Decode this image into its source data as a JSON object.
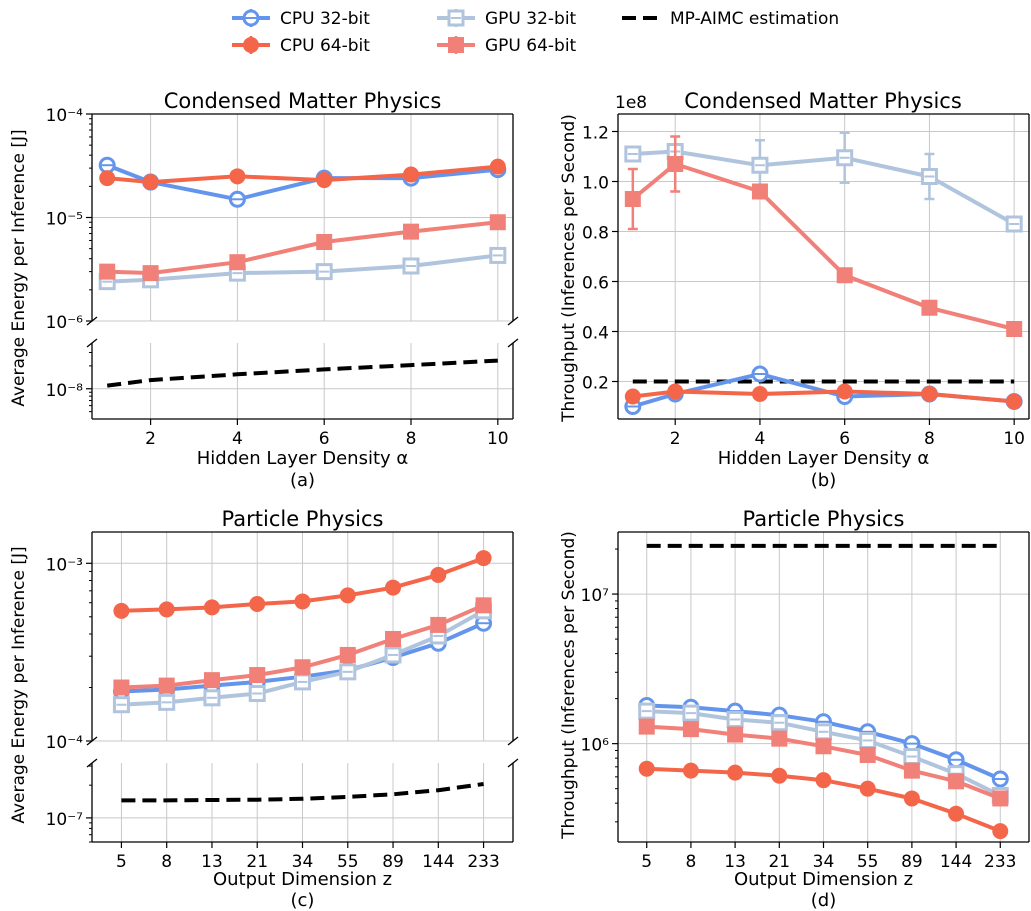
{
  "legend": {
    "entries": [
      {
        "key": "cpu32",
        "label": "CPU 32-bit"
      },
      {
        "key": "cpu64",
        "label": "CPU 64-bit"
      },
      {
        "key": "gpu32",
        "label": "GPU 32-bit"
      },
      {
        "key": "gpu64",
        "label": "GPU 64-bit"
      },
      {
        "key": "mp",
        "label": "MP-AIMC estimation"
      }
    ]
  },
  "styles": {
    "cpu32": {
      "color": "#6495ED",
      "marker": "open-circle"
    },
    "cpu64": {
      "color": "#F4664A",
      "marker": "filled-circle"
    },
    "gpu32": {
      "color": "#B0C4DE",
      "marker": "open-square"
    },
    "gpu64": {
      "color": "#F08078",
      "marker": "filled-square"
    },
    "mp": {
      "color": "#000000",
      "marker": "dashed-line"
    }
  },
  "chart_data": [
    {
      "panel": "(a)",
      "type": "line",
      "title": "Condensed Matter Physics",
      "xlabel": "Hidden Layer Density α",
      "ylabel": "Average Energy per Inference [J]",
      "yscale": "log",
      "broken_axis": true,
      "upper_ylim": [
        1e-06,
        0.0001
      ],
      "lower_ylim": [
        4e-09,
        4e-08
      ],
      "x": [
        1,
        2,
        4,
        6,
        8,
        10
      ],
      "xticks": [
        "2",
        "4",
        "6",
        "8",
        "10"
      ],
      "upper_yticks": [
        "10⁻⁶",
        "10⁻⁵",
        "10⁻⁴"
      ],
      "lower_yticks": [
        "10⁻⁸"
      ],
      "grid": true,
      "series": [
        {
          "key": "cpu32",
          "name": "CPU 32-bit",
          "values": [
            3.2e-05,
            2.2e-05,
            1.5e-05,
            2.4e-05,
            2.4e-05,
            2.9e-05
          ]
        },
        {
          "key": "cpu64",
          "name": "CPU 64-bit",
          "values": [
            2.4e-05,
            2.2e-05,
            2.5e-05,
            2.3e-05,
            2.6e-05,
            3.1e-05
          ]
        },
        {
          "key": "gpu32",
          "name": "GPU 32-bit",
          "values": [
            2.4e-06,
            2.5e-06,
            2.9e-06,
            3e-06,
            3.4e-06,
            4.3e-06
          ]
        },
        {
          "key": "gpu64",
          "name": "GPU 64-bit",
          "values": [
            3e-06,
            2.9e-06,
            3.7e-06,
            5.8e-06,
            7.3e-06,
            9e-06
          ]
        },
        {
          "key": "mp",
          "name": "MP-AIMC estimation",
          "values": [
            1.1e-08,
            1.3e-08,
            1.55e-08,
            1.8e-08,
            2.05e-08,
            2.35e-08
          ]
        }
      ]
    },
    {
      "panel": "(b)",
      "type": "line",
      "title": "Condensed Matter Physics",
      "xlabel": "Hidden Layer Density α",
      "ylabel": "Throughput (Inferences per Second)",
      "yscale": "linear",
      "scale_label": "1e8",
      "ylim": [
        0.05,
        1.27
      ],
      "x": [
        1,
        2,
        4,
        6,
        8,
        10
      ],
      "xticks": [
        "2",
        "4",
        "6",
        "8",
        "10"
      ],
      "yticks": [
        "0.2",
        "0.4",
        "0.6",
        "0.8",
        "1.0",
        "1.2"
      ],
      "grid": true,
      "series": [
        {
          "key": "cpu32",
          "name": "CPU 32-bit",
          "values": [
            0.1,
            0.15,
            0.23,
            0.14,
            0.15,
            0.12
          ]
        },
        {
          "key": "cpu64",
          "name": "CPU 64-bit",
          "values": [
            0.14,
            0.16,
            0.15,
            0.16,
            0.15,
            0.12
          ]
        },
        {
          "key": "gpu32",
          "name": "GPU 32-bit",
          "values": [
            1.11,
            1.12,
            1.065,
            1.095,
            1.02,
            0.83
          ],
          "errors": [
            0.02,
            0.02,
            0.1,
            0.1,
            0.09,
            0.02
          ]
        },
        {
          "key": "gpu64",
          "name": "GPU 64-bit",
          "values": [
            0.93,
            1.07,
            0.96,
            0.625,
            0.495,
            0.41
          ],
          "errors": [
            0.12,
            0.11,
            0.01,
            0.01,
            0.01,
            0.01
          ]
        },
        {
          "key": "mp",
          "name": "MP-AIMC estimation",
          "values": [
            0.2,
            0.2,
            0.2,
            0.2,
            0.2,
            0.2
          ]
        }
      ]
    },
    {
      "panel": "(c)",
      "type": "line",
      "title": "Particle Physics",
      "xlabel": "Output Dimension z",
      "ylabel": "Average Energy per Inference [J]",
      "yscale": "log",
      "broken_axis": true,
      "upper_ylim": [
        0.0001,
        0.0015
      ],
      "lower_ylim": [
        6e-08,
        3.2e-07
      ],
      "x": [
        5,
        8,
        13,
        21,
        34,
        55,
        89,
        144,
        233
      ],
      "xticks": [
        "5",
        "8",
        "13",
        "21",
        "34",
        "55",
        "89",
        "144",
        "233"
      ],
      "upper_yticks": [
        "10⁻⁴",
        "10⁻³"
      ],
      "lower_yticks": [
        "10⁻⁷"
      ],
      "grid": true,
      "series": [
        {
          "key": "cpu32",
          "name": "CPU 32-bit",
          "values": [
            0.00019,
            0.000195,
            0.000205,
            0.000215,
            0.00023,
            0.00025,
            0.000295,
            0.000355,
            0.00046
          ]
        },
        {
          "key": "cpu64",
          "name": "CPU 64-bit",
          "values": [
            0.00054,
            0.00055,
            0.000565,
            0.00059,
            0.00061,
            0.00066,
            0.00073,
            0.00086,
            0.00107
          ]
        },
        {
          "key": "gpu32",
          "name": "GPU 32-bit",
          "values": [
            0.00016,
            0.000165,
            0.000175,
            0.000185,
            0.000215,
            0.000245,
            0.000305,
            0.00039,
            0.00054
          ]
        },
        {
          "key": "gpu64",
          "name": "GPU 64-bit",
          "values": [
            0.0002,
            0.000205,
            0.00022,
            0.000235,
            0.00026,
            0.000305,
            0.000375,
            0.00045,
            0.00058
          ]
        },
        {
          "key": "mp",
          "name": "MP-AIMC estimation",
          "values": [
            1.45e-07,
            1.45e-07,
            1.46e-07,
            1.47e-07,
            1.5e-07,
            1.56e-07,
            1.65e-07,
            1.8e-07,
            2.05e-07
          ]
        }
      ]
    },
    {
      "panel": "(d)",
      "type": "line",
      "title": "Particle Physics",
      "xlabel": "Output Dimension z",
      "ylabel": "Throughput (Inferences per Second)",
      "yscale": "log",
      "ylim": [
        220000.0,
        26000000.0
      ],
      "x": [
        5,
        8,
        13,
        21,
        34,
        55,
        89,
        144,
        233
      ],
      "xticks": [
        "5",
        "8",
        "13",
        "21",
        "34",
        "55",
        "89",
        "144",
        "233"
      ],
      "yticks": [
        "10⁶",
        "10⁷"
      ],
      "grid": true,
      "series": [
        {
          "key": "cpu32",
          "name": "CPU 32-bit",
          "values": [
            1800000.0,
            1750000.0,
            1650000.0,
            1550000.0,
            1400000.0,
            1200000.0,
            1000000.0,
            780000.0,
            580000.0
          ]
        },
        {
          "key": "cpu64",
          "name": "CPU 64-bit",
          "values": [
            680000.0,
            660000.0,
            640000.0,
            610000.0,
            570000.0,
            500000.0,
            430000.0,
            340000.0,
            260000.0
          ]
        },
        {
          "key": "gpu32",
          "name": "GPU 32-bit",
          "values": [
            1650000.0,
            1600000.0,
            1450000.0,
            1380000.0,
            1200000.0,
            1050000.0,
            820000.0,
            630000.0,
            450000.0
          ]
        },
        {
          "key": "gpu64",
          "name": "GPU 64-bit",
          "values": [
            1300000.0,
            1250000.0,
            1150000.0,
            1080000.0,
            960000.0,
            840000.0,
            660000.0,
            560000.0,
            430000.0
          ]
        },
        {
          "key": "mp",
          "name": "MP-AIMC estimation",
          "values": [
            21000000.0,
            21000000.0,
            21000000.0,
            21000000.0,
            21000000.0,
            21000000.0,
            21000000.0,
            21000000.0,
            21000000.0
          ]
        }
      ]
    }
  ],
  "captions": [
    "(a)",
    "(b)",
    "(c)",
    "(d)"
  ]
}
